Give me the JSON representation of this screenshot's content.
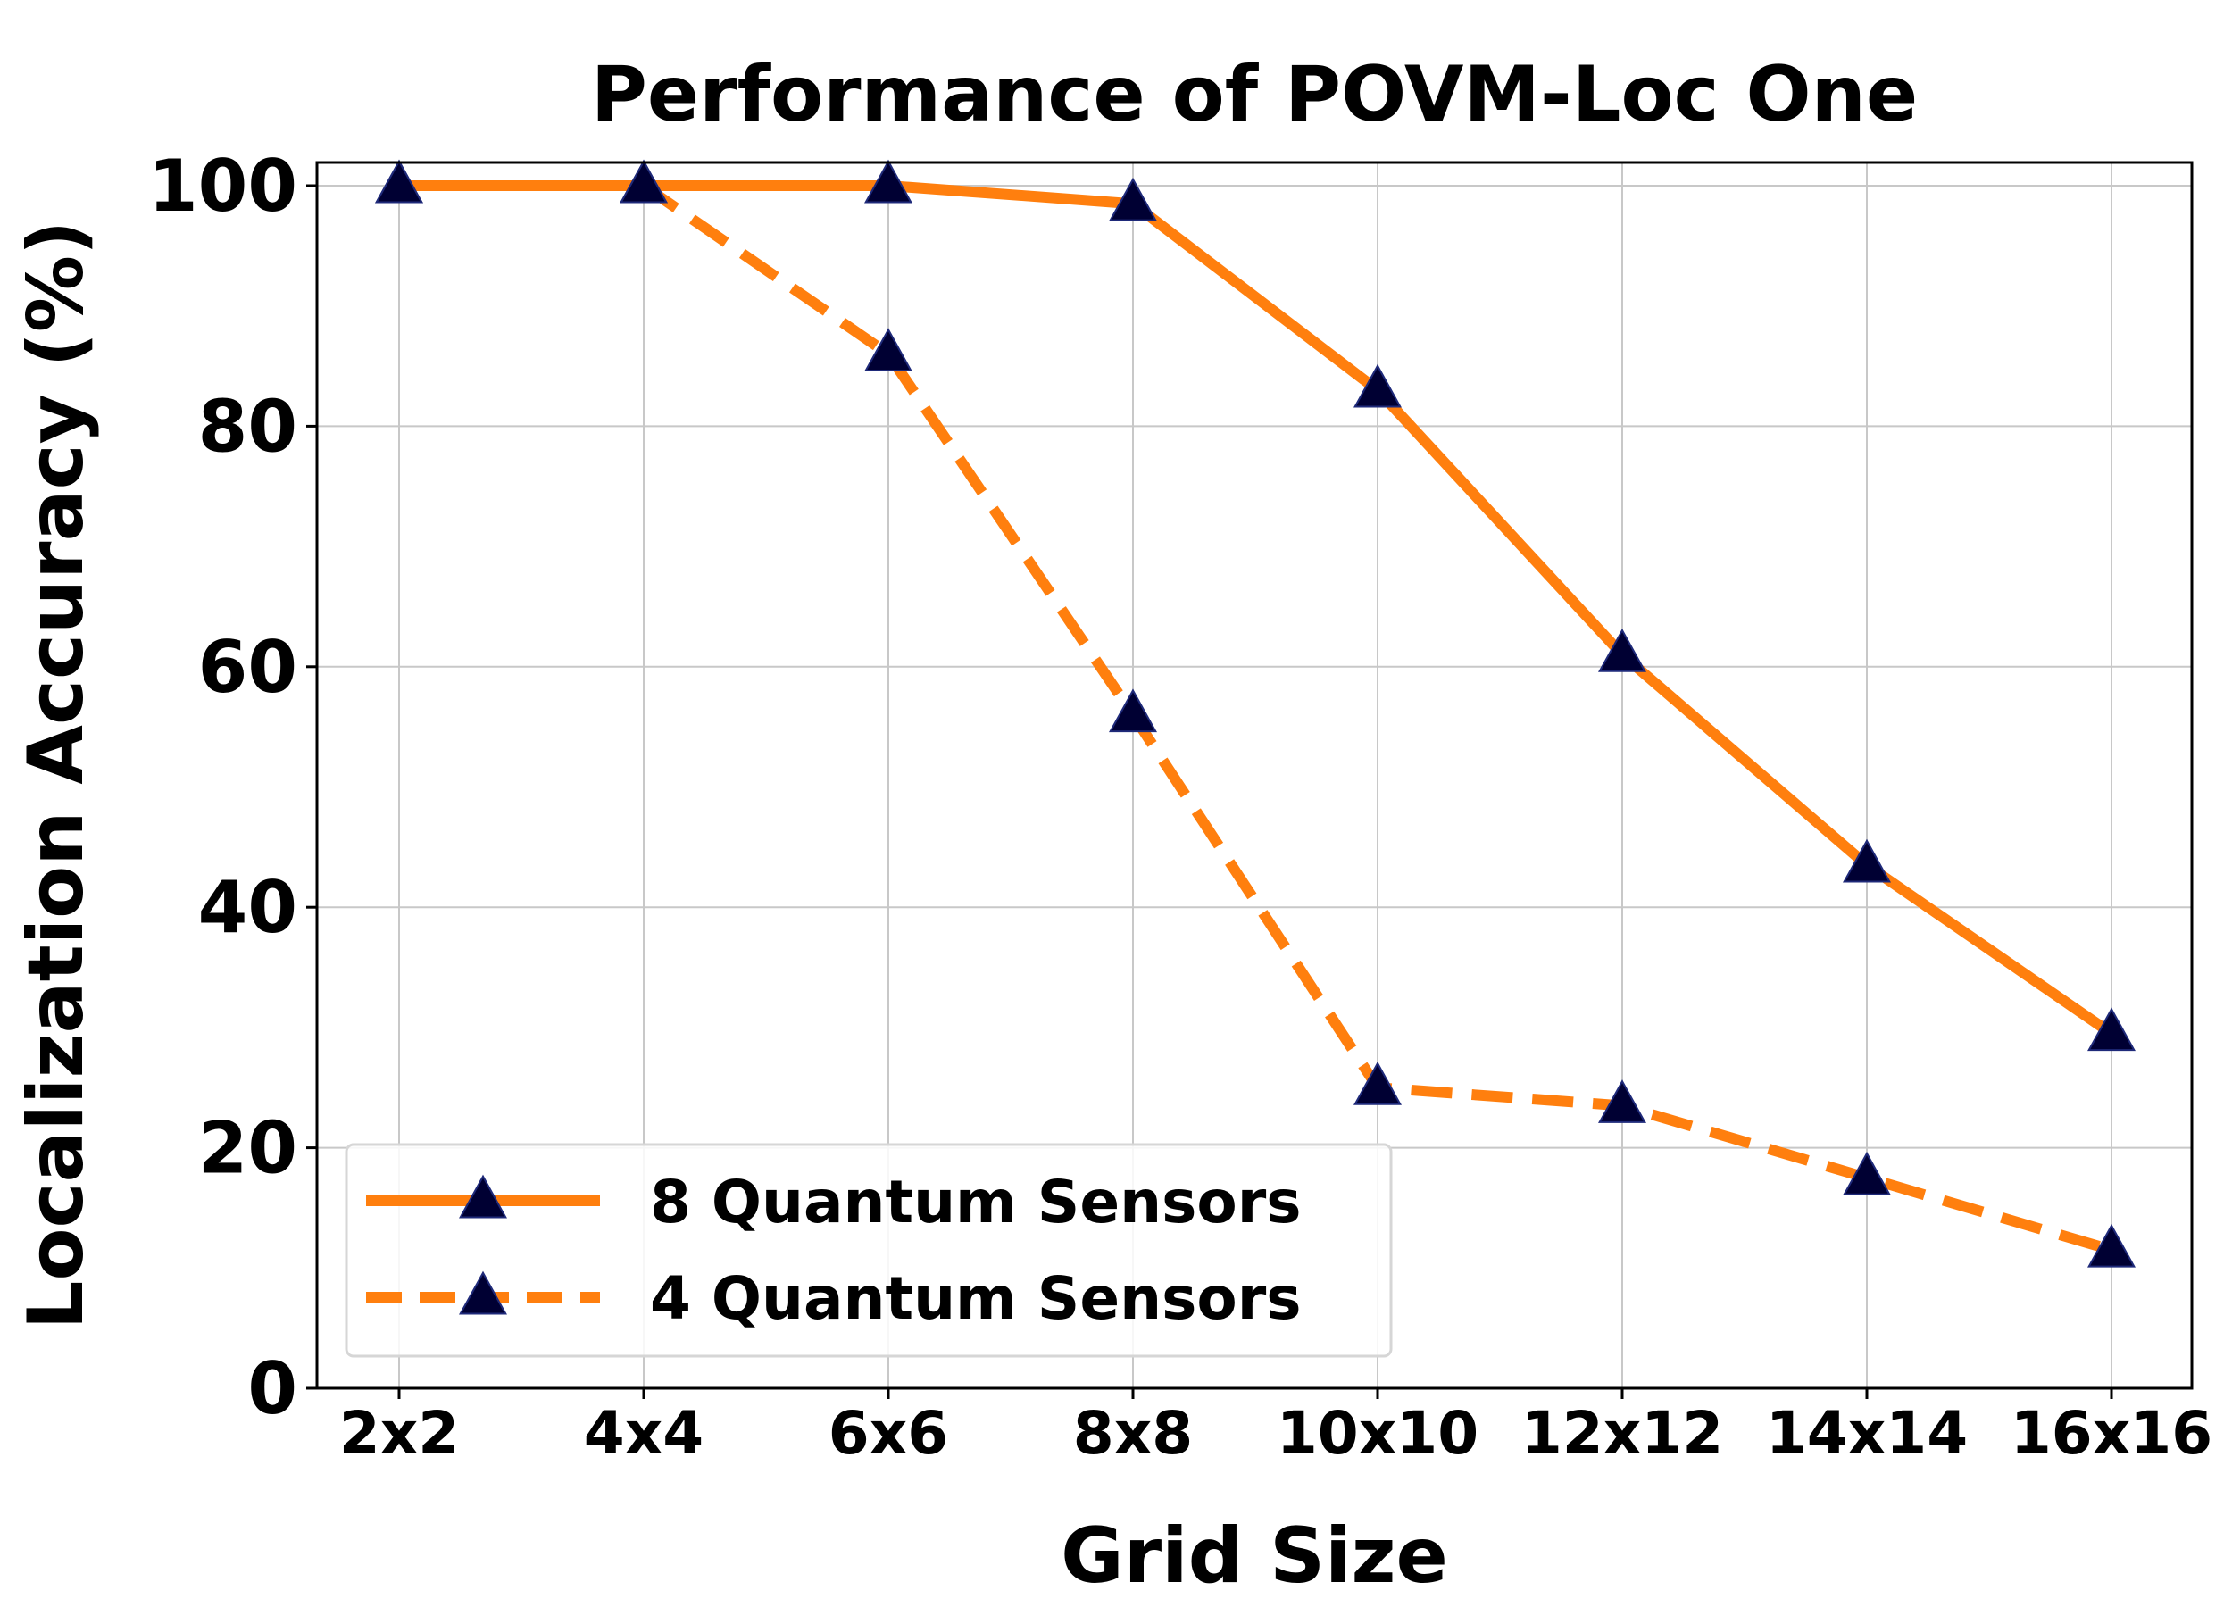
{
  "chart_data": {
    "type": "line",
    "title": "Performance of POVM-Loc One",
    "xlabel": "Grid Size",
    "ylabel": "Localization Accuracy (%)",
    "categories": [
      "2x2",
      "4x4",
      "6x6",
      "8x8",
      "10x10",
      "12x12",
      "14x14",
      "16x16"
    ],
    "ylim": [
      0,
      102
    ],
    "yticks": [
      0,
      20,
      40,
      60,
      80,
      100
    ],
    "grid": true,
    "legend_position": "lower-left",
    "series": [
      {
        "name": "8 Quantum Sensors",
        "values": [
          100,
          100,
          100,
          98.5,
          83,
          61,
          43.5,
          29.5
        ],
        "line_style": "solid",
        "color": "#ff7f0e",
        "marker": "triangle-up",
        "marker_color": "#000033"
      },
      {
        "name": "4 Quantum Sensors",
        "values": [
          100,
          100,
          86,
          56,
          25,
          23.5,
          17.5,
          11.5
        ],
        "line_style": "dashed",
        "color": "#ff7f0e",
        "marker": "triangle-up",
        "marker_color": "#000033"
      }
    ]
  }
}
